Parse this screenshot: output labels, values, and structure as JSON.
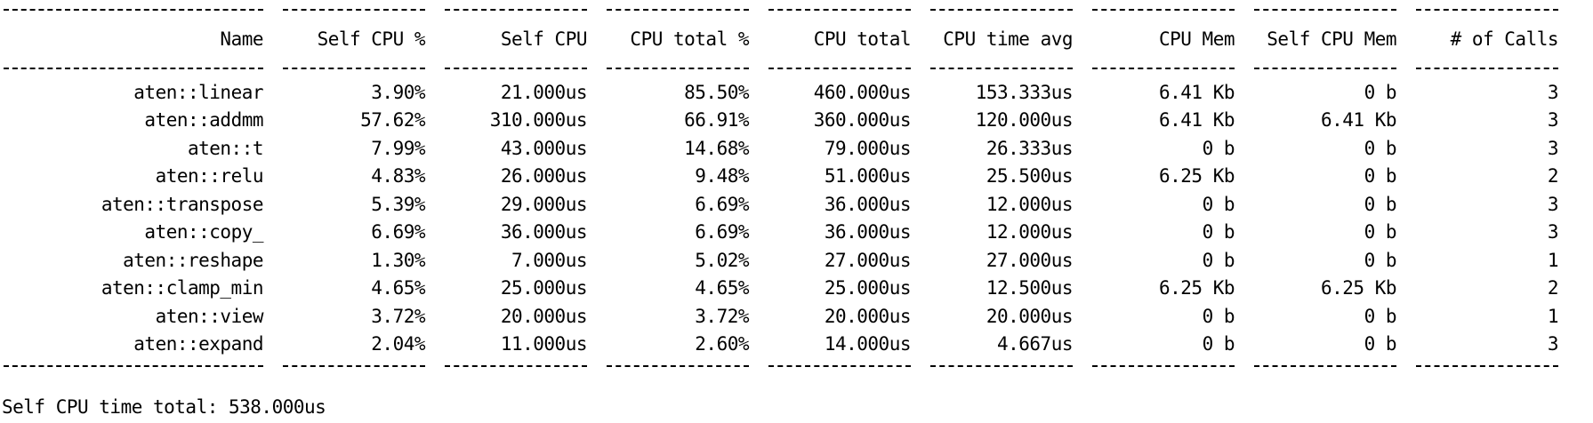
{
  "columns": [
    "Name",
    "Self CPU %",
    "Self CPU",
    "CPU total %",
    "CPU total",
    "CPU time avg",
    "CPU Mem",
    "Self CPU Mem",
    "# of Calls"
  ],
  "rows": [
    [
      "aten::linear",
      "3.90%",
      "21.000us",
      "85.50%",
      "460.000us",
      "153.333us",
      "6.41 Kb",
      "0 b",
      "3"
    ],
    [
      "aten::addmm",
      "57.62%",
      "310.000us",
      "66.91%",
      "360.000us",
      "120.000us",
      "6.41 Kb",
      "6.41 Kb",
      "3"
    ],
    [
      "aten::t",
      "7.99%",
      "43.000us",
      "14.68%",
      "79.000us",
      "26.333us",
      "0 b",
      "0 b",
      "3"
    ],
    [
      "aten::relu",
      "4.83%",
      "26.000us",
      "9.48%",
      "51.000us",
      "25.500us",
      "6.25 Kb",
      "0 b",
      "2"
    ],
    [
      "aten::transpose",
      "5.39%",
      "29.000us",
      "6.69%",
      "36.000us",
      "12.000us",
      "0 b",
      "0 b",
      "3"
    ],
    [
      "aten::copy_",
      "6.69%",
      "36.000us",
      "6.69%",
      "36.000us",
      "12.000us",
      "0 b",
      "0 b",
      "3"
    ],
    [
      "aten::reshape",
      "1.30%",
      "7.000us",
      "5.02%",
      "27.000us",
      "27.000us",
      "0 b",
      "0 b",
      "1"
    ],
    [
      "aten::clamp_min",
      "4.65%",
      "25.000us",
      "4.65%",
      "25.000us",
      "12.500us",
      "6.25 Kb",
      "6.25 Kb",
      "2"
    ],
    [
      "aten::view",
      "3.72%",
      "20.000us",
      "3.72%",
      "20.000us",
      "20.000us",
      "0 b",
      "0 b",
      "1"
    ],
    [
      "aten::expand",
      "2.04%",
      "11.000us",
      "2.60%",
      "14.000us",
      "4.667us",
      "0 b",
      "0 b",
      "3"
    ]
  ],
  "footer": "Self CPU time total: 538.000us"
}
